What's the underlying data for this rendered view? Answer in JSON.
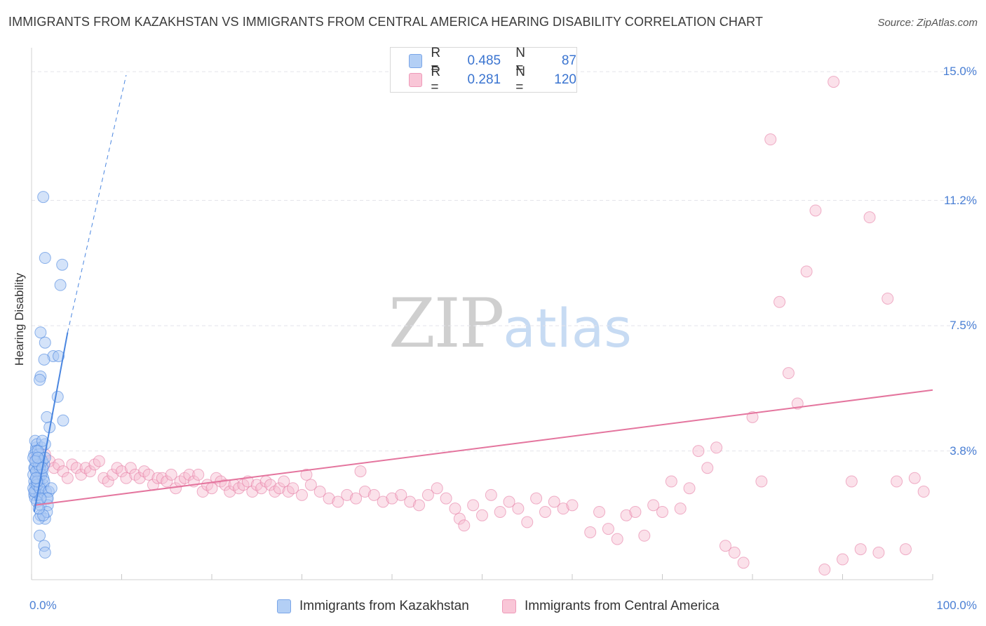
{
  "title": "IMMIGRANTS FROM KAZAKHSTAN VS IMMIGRANTS FROM CENTRAL AMERICA HEARING DISABILITY CORRELATION CHART",
  "source": "Source: ZipAtlas.com",
  "watermark": {
    "zip": "ZIP",
    "atlas": "atlas"
  },
  "colors": {
    "kazakhstan": "#4a86e0",
    "kazakhstan_fill": "#a9c8f4",
    "central_america": "#e4759e",
    "central_america_fill": "#f7bcd0",
    "tick_text": "#4a7fd4",
    "grid": "#e4e4ea"
  },
  "legend": {
    "rows": [
      {
        "r_label": "R =",
        "r_value": "0.485",
        "n_label": "N =",
        "n_value": "87"
      },
      {
        "r_label": "R =",
        "r_value": "0.281",
        "n_label": "N =",
        "n_value": "120"
      }
    ]
  },
  "bottom_legend": {
    "kazakhstan": "Immigrants from Kazakhstan",
    "central_america": "Immigrants from Central America"
  },
  "chart_data": {
    "type": "scatter",
    "title": "IMMIGRANTS FROM KAZAKHSTAN VS IMMIGRANTS FROM CENTRAL AMERICA HEARING DISABILITY CORRELATION CHART",
    "xlabel": "",
    "ylabel": "Hearing Disability",
    "xlim": [
      0,
      100
    ],
    "ylim": [
      0,
      15.5
    ],
    "x_tick_labels": [
      "0.0%",
      "100.0%"
    ],
    "y_ticks": [
      {
        "value": 3.8,
        "label": "3.8%"
      },
      {
        "value": 7.5,
        "label": "7.5%"
      },
      {
        "value": 11.2,
        "label": "11.2%"
      },
      {
        "value": 15.0,
        "label": "15.0%"
      }
    ],
    "grid": "horizontal dashed",
    "legend_position": "top-center",
    "series": [
      {
        "name": "Immigrants from Kazakhstan",
        "r": 0.485,
        "n": 87,
        "trend": {
          "x0": 0.3,
          "y0": 2.0,
          "x1": 4.0,
          "y1": 7.3,
          "dashed_to_x": 10.5,
          "dashed_to_y": 14.9
        },
        "points": [
          [
            0.3,
            2.5
          ],
          [
            0.4,
            2.8
          ],
          [
            0.5,
            3.0
          ],
          [
            0.3,
            3.3
          ],
          [
            0.6,
            3.6
          ],
          [
            0.5,
            3.9
          ],
          [
            0.4,
            4.1
          ],
          [
            0.7,
            3.5
          ],
          [
            0.6,
            3.2
          ],
          [
            0.8,
            2.9
          ],
          [
            0.5,
            2.6
          ],
          [
            0.4,
            2.4
          ],
          [
            0.9,
            3.1
          ],
          [
            1.0,
            3.4
          ],
          [
            1.1,
            2.7
          ],
          [
            0.3,
            3.7
          ],
          [
            0.6,
            4.0
          ],
          [
            0.5,
            3.8
          ],
          [
            0.7,
            3.3
          ],
          [
            0.8,
            3.0
          ],
          [
            0.4,
            2.6
          ],
          [
            0.3,
            2.9
          ],
          [
            1.2,
            3.2
          ],
          [
            1.3,
            2.8
          ],
          [
            0.9,
            2.5
          ],
          [
            1.0,
            3.6
          ],
          [
            1.4,
            3.4
          ],
          [
            0.2,
            3.1
          ],
          [
            0.2,
            2.7
          ],
          [
            0.6,
            2.3
          ],
          [
            0.8,
            3.7
          ],
          [
            1.1,
            3.9
          ],
          [
            1.5,
            4.0
          ],
          [
            1.2,
            3.5
          ],
          [
            0.5,
            3.5
          ],
          [
            0.4,
            3.3
          ],
          [
            0.7,
            2.9
          ],
          [
            1.6,
            2.6
          ],
          [
            1.0,
            2.2
          ],
          [
            1.3,
            3.0
          ],
          [
            0.9,
            3.3
          ],
          [
            1.1,
            3.1
          ],
          [
            0.3,
            2.6
          ],
          [
            0.6,
            2.8
          ],
          [
            1.4,
            2.9
          ],
          [
            0.5,
            3.2
          ],
          [
            0.8,
            3.4
          ],
          [
            0.2,
            3.6
          ],
          [
            0.7,
            3.8
          ],
          [
            1.2,
            4.1
          ],
          [
            1.5,
            3.6
          ],
          [
            0.9,
            2.7
          ],
          [
            1.7,
            2.4
          ],
          [
            1.8,
            2.2
          ],
          [
            1.9,
            2.6
          ],
          [
            2.2,
            2.7
          ],
          [
            2.0,
            4.5
          ],
          [
            1.7,
            4.8
          ],
          [
            2.4,
            6.6
          ],
          [
            3.0,
            6.6
          ],
          [
            1.5,
            7.0
          ],
          [
            2.9,
            5.4
          ],
          [
            3.5,
            4.7
          ],
          [
            1.0,
            6.0
          ],
          [
            0.9,
            5.9
          ],
          [
            1.4,
            6.5
          ],
          [
            1.0,
            7.3
          ],
          [
            3.2,
            8.7
          ],
          [
            3.4,
            9.3
          ],
          [
            1.5,
            9.5
          ],
          [
            1.3,
            11.3
          ],
          [
            1.8,
            2.4
          ],
          [
            1.0,
            1.9
          ],
          [
            1.5,
            1.8
          ],
          [
            1.7,
            2.0
          ],
          [
            0.8,
            1.8
          ],
          [
            1.3,
            1.9
          ],
          [
            0.9,
            1.3
          ],
          [
            1.4,
            1.0
          ],
          [
            1.5,
            0.8
          ],
          [
            0.6,
            2.9
          ],
          [
            0.5,
            3.0
          ],
          [
            0.4,
            3.5
          ],
          [
            0.7,
            3.6
          ],
          [
            1.2,
            3.3
          ],
          [
            1.0,
            2.4
          ],
          [
            0.8,
            2.1
          ]
        ]
      },
      {
        "name": "Immigrants from Central America",
        "r": 0.281,
        "n": 120,
        "trend": {
          "x0": 0.3,
          "y0": 2.2,
          "x1": 100,
          "y1": 5.6
        },
        "points": [
          [
            0.5,
            3.6
          ],
          [
            1.0,
            3.4
          ],
          [
            1.5,
            3.7
          ],
          [
            2.0,
            3.5
          ],
          [
            2.5,
            3.3
          ],
          [
            3.0,
            3.4
          ],
          [
            3.5,
            3.2
          ],
          [
            4.0,
            3.0
          ],
          [
            4.5,
            3.4
          ],
          [
            5.0,
            3.3
          ],
          [
            5.5,
            3.1
          ],
          [
            6.0,
            3.3
          ],
          [
            6.5,
            3.2
          ],
          [
            7.0,
            3.4
          ],
          [
            7.5,
            3.5
          ],
          [
            8.0,
            3.0
          ],
          [
            8.5,
            2.9
          ],
          [
            9.0,
            3.1
          ],
          [
            9.5,
            3.3
          ],
          [
            10.0,
            3.2
          ],
          [
            10.5,
            3.0
          ],
          [
            11.0,
            3.3
          ],
          [
            11.5,
            3.1
          ],
          [
            12.0,
            3.0
          ],
          [
            12.5,
            3.2
          ],
          [
            13.0,
            3.1
          ],
          [
            13.5,
            2.8
          ],
          [
            14.0,
            3.0
          ],
          [
            14.5,
            3.0
          ],
          [
            15.0,
            2.9
          ],
          [
            15.5,
            3.1
          ],
          [
            16.0,
            2.7
          ],
          [
            16.5,
            2.9
          ],
          [
            17.0,
            3.0
          ],
          [
            17.5,
            3.1
          ],
          [
            18.0,
            2.9
          ],
          [
            18.5,
            3.1
          ],
          [
            19.0,
            2.6
          ],
          [
            19.5,
            2.8
          ],
          [
            20.0,
            2.7
          ],
          [
            20.5,
            3.0
          ],
          [
            21.0,
            2.9
          ],
          [
            21.5,
            2.8
          ],
          [
            22.0,
            2.6
          ],
          [
            22.5,
            2.8
          ],
          [
            23.0,
            2.7
          ],
          [
            23.5,
            2.8
          ],
          [
            24.0,
            2.9
          ],
          [
            24.5,
            2.6
          ],
          [
            25.0,
            2.8
          ],
          [
            25.5,
            2.7
          ],
          [
            26.0,
            2.9
          ],
          [
            26.5,
            2.8
          ],
          [
            27.0,
            2.6
          ],
          [
            27.5,
            2.7
          ],
          [
            28.0,
            2.9
          ],
          [
            28.5,
            2.6
          ],
          [
            29.0,
            2.7
          ],
          [
            30.0,
            2.5
          ],
          [
            31.0,
            2.8
          ],
          [
            32.0,
            2.6
          ],
          [
            33.0,
            2.4
          ],
          [
            34.0,
            2.3
          ],
          [
            35.0,
            2.5
          ],
          [
            36.0,
            2.4
          ],
          [
            37.0,
            2.6
          ],
          [
            38.0,
            2.5
          ],
          [
            39.0,
            2.3
          ],
          [
            40.0,
            2.4
          ],
          [
            41.0,
            2.5
          ],
          [
            42.0,
            2.3
          ],
          [
            43.0,
            2.2
          ],
          [
            44.0,
            2.5
          ],
          [
            45.0,
            2.7
          ],
          [
            46.0,
            2.4
          ],
          [
            47.0,
            2.1
          ],
          [
            47.5,
            1.8
          ],
          [
            48.0,
            1.6
          ],
          [
            49.0,
            2.2
          ],
          [
            50.0,
            1.9
          ],
          [
            51.0,
            2.5
          ],
          [
            52.0,
            2.0
          ],
          [
            53.0,
            2.3
          ],
          [
            54.0,
            2.1
          ],
          [
            55.0,
            1.7
          ],
          [
            56.0,
            2.4
          ],
          [
            57.0,
            2.0
          ],
          [
            58.0,
            2.3
          ],
          [
            59.0,
            2.1
          ],
          [
            60.0,
            2.2
          ],
          [
            62.0,
            1.4
          ],
          [
            63.0,
            2.0
          ],
          [
            64.0,
            1.5
          ],
          [
            65.0,
            1.2
          ],
          [
            66.0,
            1.9
          ],
          [
            67.0,
            2.0
          ],
          [
            68.0,
            1.3
          ],
          [
            69.0,
            2.2
          ],
          [
            70.0,
            2.0
          ],
          [
            71.0,
            2.9
          ],
          [
            72.0,
            2.1
          ],
          [
            73.0,
            2.7
          ],
          [
            74.0,
            3.8
          ],
          [
            75.0,
            3.3
          ],
          [
            76.0,
            3.9
          ],
          [
            77.0,
            1.0
          ],
          [
            78.0,
            0.8
          ],
          [
            79.0,
            0.5
          ],
          [
            80.0,
            4.8
          ],
          [
            81.0,
            2.9
          ],
          [
            82.0,
            13.0
          ],
          [
            83.0,
            8.2
          ],
          [
            84.0,
            6.1
          ],
          [
            85.0,
            5.2
          ],
          [
            86.0,
            9.1
          ],
          [
            87.0,
            10.9
          ],
          [
            88.0,
            0.3
          ],
          [
            89.0,
            14.7
          ],
          [
            90.0,
            0.6
          ],
          [
            91.0,
            2.9
          ],
          [
            92.0,
            0.9
          ],
          [
            93.0,
            10.7
          ],
          [
            94.0,
            0.8
          ],
          [
            95.0,
            8.3
          ],
          [
            96.0,
            2.9
          ],
          [
            97.0,
            0.9
          ],
          [
            98.0,
            3.0
          ],
          [
            99.0,
            2.6
          ],
          [
            30.5,
            3.1
          ],
          [
            36.5,
            3.2
          ]
        ]
      }
    ]
  }
}
